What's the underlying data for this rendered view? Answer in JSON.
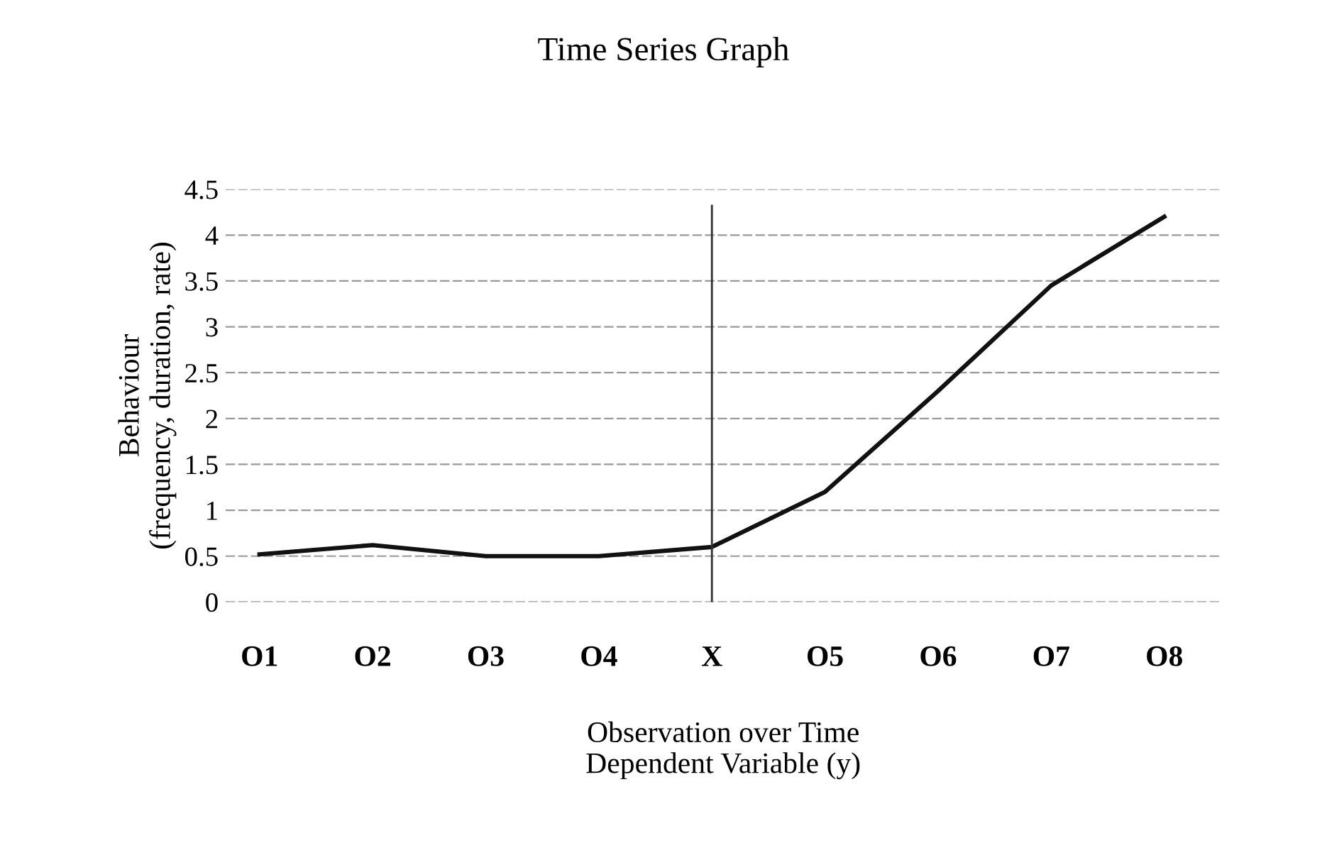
{
  "chart_data": {
    "type": "line",
    "title": "Time Series Graph",
    "xlabel": "Observation over Time\nDependent Variable (y)",
    "ylabel": "Behaviour\n(frequency, duration, rate)",
    "categories": [
      "O1",
      "O2",
      "O3",
      "O4",
      "X",
      "O5",
      "O6",
      "O7",
      "O8"
    ],
    "series": [
      {
        "color": "#111111",
        "values": [
          0.52,
          0.62,
          0.5,
          0.5,
          0.6,
          1.2,
          2.3,
          3.45,
          4.2
        ]
      }
    ],
    "ylim": [
      0,
      4.5
    ],
    "yticks": [
      0,
      0.5,
      1,
      1.5,
      2,
      2.5,
      3,
      3.5,
      4,
      4.5
    ],
    "grid": "y",
    "legend": false,
    "marker": "none",
    "line_style": "solid",
    "ref_lines": [
      {
        "axis": "x",
        "value": "X",
        "color": "#333333",
        "line_style": "solid"
      }
    ]
  }
}
